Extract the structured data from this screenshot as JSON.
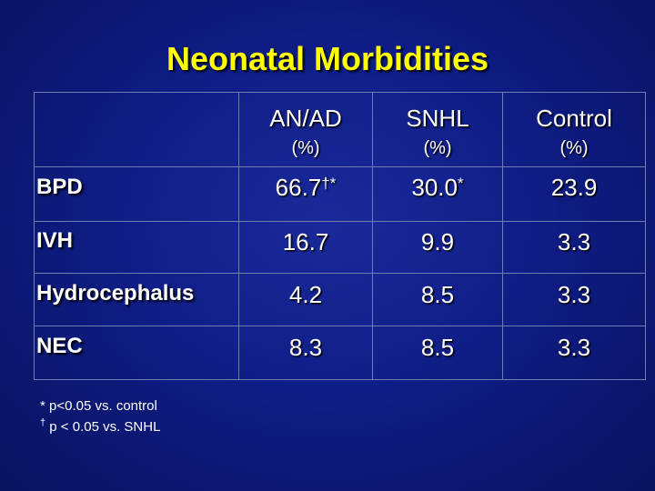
{
  "title": "Neonatal Morbidities",
  "columns": [
    {
      "name": "AN/AD",
      "unit": "(%)"
    },
    {
      "name": "SNHL",
      "unit": "(%)"
    },
    {
      "name": "Control",
      "unit": "(%)"
    }
  ],
  "rows": [
    {
      "label": "BPD",
      "values": [
        "66.7",
        "30.0",
        "23.9"
      ],
      "marks": [
        "†*",
        "*",
        ""
      ]
    },
    {
      "label": "IVH",
      "values": [
        "16.7",
        "9.9",
        "3.3"
      ]
    },
    {
      "label": "Hydrocephalus",
      "values": [
        "4.2",
        "8.5",
        "3.3"
      ]
    },
    {
      "label": "NEC",
      "values": [
        "8.3",
        "8.5",
        "3.3"
      ]
    }
  ],
  "footnotes": [
    {
      "mark": "*",
      "text": "p<0.05 vs. control"
    },
    {
      "mark": "†",
      "text": "p < 0.05 vs. SNHL"
    }
  ]
}
